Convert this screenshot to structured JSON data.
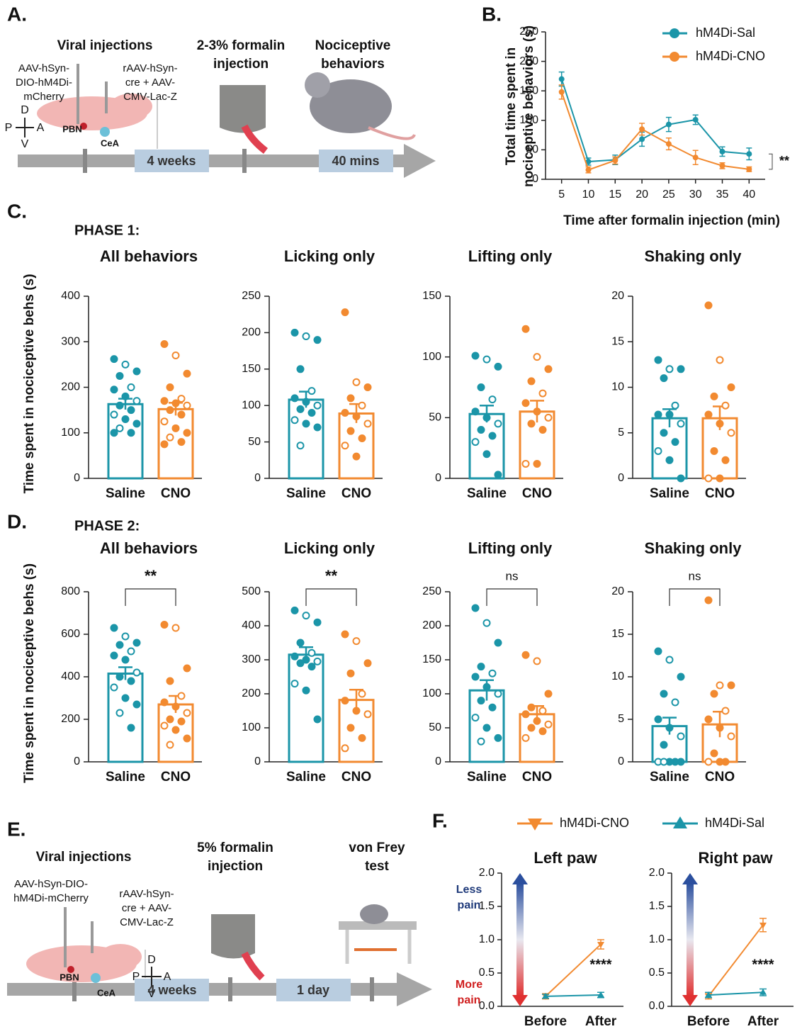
{
  "panel_labels": [
    "A.",
    "B.",
    "C.",
    "D.",
    "E.",
    "F."
  ],
  "phase_labels": [
    "PHASE 1:",
    "PHASE 2:"
  ],
  "schematic_a": {
    "steps": [
      [
        "Viral injections"
      ],
      [
        "2-3% formalin",
        "injection"
      ],
      [
        "Nociceptive",
        "behaviors"
      ]
    ],
    "injections": [
      [
        "AAV-hSyn-",
        "DIO-hM4Di-",
        "mCherry"
      ],
      [
        "rAAV-hSyn-",
        "cre + AAV-",
        "CMV-Lac-Z"
      ]
    ],
    "regions": [
      "PBN",
      "CeA"
    ],
    "compass": [
      "D",
      "P",
      "A",
      "V"
    ],
    "durations": [
      "4 weeks",
      "40 mins"
    ]
  },
  "schematic_e": {
    "steps": [
      [
        "Viral injections"
      ],
      [
        "5% formalin",
        "injection"
      ],
      [
        "von Frey",
        "test"
      ]
    ],
    "injections": [
      [
        "AAV-hSyn-DIO-",
        "hM4Di-mCherry"
      ],
      [
        "rAAV-hSyn-",
        "cre + AAV-",
        "CMV-Lac-Z"
      ]
    ],
    "regions": [
      "PBN",
      "CeA"
    ],
    "compass": [
      "D",
      "P",
      "A",
      "V"
    ],
    "durations": [
      "4 weeks",
      "1 day"
    ]
  },
  "chart_data": [
    {
      "type": "line",
      "ylabel": [
        "Total time spent in",
        "nociceptive behaviors (s)"
      ],
      "xlabel": "Time after formalin injection (min)",
      "x": [
        5,
        10,
        15,
        20,
        25,
        30,
        35,
        40
      ],
      "xlim": [
        2,
        43
      ],
      "xticks": [
        5,
        10,
        15,
        20,
        25,
        30,
        35,
        40
      ],
      "ylim": [
        0,
        250
      ],
      "yticks": [
        0,
        50,
        100,
        150,
        200,
        250
      ],
      "series": [
        {
          "name": "hM4Di-Sal",
          "color": "#1b95a8",
          "values": [
            170,
            30,
            33,
            68,
            93,
            101,
            47,
            43
          ],
          "errors": [
            12,
            6,
            8,
            12,
            12,
            8,
            8,
            10
          ]
        },
        {
          "name": "hM4Di-CNO",
          "color": "#f28a30",
          "values": [
            148,
            16,
            32,
            85,
            60,
            37,
            23,
            17
          ],
          "errors": [
            12,
            5,
            6,
            10,
            10,
            12,
            5,
            4
          ]
        }
      ],
      "annotation": "**"
    },
    {
      "type": "bar",
      "title": "All behaviors",
      "ylabel": "Time spent in nociceptive behs (s)",
      "categories": [
        "Saline",
        "CNO"
      ],
      "colors": [
        "#1b95a8",
        "#f28a30"
      ],
      "values": [
        163,
        152
      ],
      "errors": [
        12,
        14
      ],
      "ylim": [
        0,
        400
      ],
      "yticks": [
        0,
        100,
        200,
        300,
        400
      ],
      "points": [
        [
          262,
          250,
          235,
          225,
          200,
          195,
          180,
          170,
          160,
          150,
          140,
          130,
          120,
          110,
          100,
          100
        ],
        [
          295,
          270,
          230,
          200,
          175,
          170,
          165,
          160,
          150,
          140,
          125,
          110,
          100,
          90,
          80,
          75
        ]
      ]
    },
    {
      "type": "bar",
      "title": "Licking only",
      "categories": [
        "Saline",
        "CNO"
      ],
      "colors": [
        "#1b95a8",
        "#f28a30"
      ],
      "values": [
        108,
        89
      ],
      "errors": [
        11,
        13
      ],
      "ylim": [
        0,
        250
      ],
      "yticks": [
        0,
        50,
        100,
        150,
        200,
        250
      ],
      "points": [
        [
          200,
          195,
          190,
          150,
          120,
          110,
          105,
          100,
          95,
          90,
          80,
          75,
          70,
          45
        ],
        [
          228,
          132,
          125,
          110,
          100,
          90,
          85,
          75,
          65,
          55,
          45,
          30
        ]
      ]
    },
    {
      "type": "bar",
      "title": "Lifting only",
      "categories": [
        "Saline",
        "CNO"
      ],
      "colors": [
        "#1b95a8",
        "#f28a30"
      ],
      "values": [
        53,
        55
      ],
      "errors": [
        7,
        9
      ],
      "ylim": [
        0,
        150
      ],
      "yticks": [
        0,
        50,
        100,
        150
      ],
      "points": [
        [
          101,
          98,
          92,
          75,
          65,
          55,
          50,
          45,
          40,
          35,
          30,
          20,
          3
        ],
        [
          123,
          100,
          90,
          80,
          70,
          62,
          55,
          50,
          45,
          40,
          12,
          12
        ]
      ]
    },
    {
      "type": "bar",
      "title": "Shaking only",
      "categories": [
        "Saline",
        "CNO"
      ],
      "colors": [
        "#1b95a8",
        "#f28a30"
      ],
      "values": [
        6.6,
        6.6
      ],
      "errors": [
        1,
        1.3
      ],
      "ylim": [
        0,
        20
      ],
      "yticks": [
        0,
        5,
        10,
        15,
        20
      ],
      "points": [
        [
          13,
          12,
          12,
          11,
          8,
          7,
          7,
          6,
          5,
          4,
          3,
          2,
          0
        ],
        [
          19,
          13,
          10,
          9,
          8,
          7,
          6,
          5,
          3,
          2,
          0,
          0
        ]
      ]
    },
    {
      "type": "bar",
      "title": "All behaviors",
      "ylabel": "Time spent in nociceptive behs (s)",
      "categories": [
        "Saline",
        "CNO"
      ],
      "colors": [
        "#1b95a8",
        "#f28a30"
      ],
      "values": [
        415,
        270
      ],
      "errors": [
        30,
        40
      ],
      "ylim": [
        0,
        800
      ],
      "yticks": [
        0,
        200,
        400,
        600,
        800
      ],
      "points": [
        [
          630,
          590,
          560,
          550,
          520,
          500,
          480,
          420,
          400,
          380,
          350,
          300,
          270,
          230,
          160
        ],
        [
          645,
          630,
          440,
          380,
          310,
          280,
          260,
          230,
          200,
          190,
          170,
          150,
          110,
          80
        ]
      ],
      "annotation": "**"
    },
    {
      "type": "bar",
      "title": "Licking only",
      "categories": [
        "Saline",
        "CNO"
      ],
      "colors": [
        "#1b95a8",
        "#f28a30"
      ],
      "values": [
        315,
        182
      ],
      "errors": [
        22,
        30
      ],
      "ylim": [
        0,
        500
      ],
      "yticks": [
        0,
        100,
        200,
        300,
        400,
        500
      ],
      "points": [
        [
          445,
          430,
          410,
          350,
          320,
          310,
          300,
          295,
          290,
          280,
          230,
          210,
          125
        ],
        [
          375,
          355,
          290,
          260,
          200,
          180,
          150,
          140,
          100,
          70,
          40
        ]
      ],
      "annotation": "**"
    },
    {
      "type": "bar",
      "title": "Lifting only",
      "categories": [
        "Saline",
        "CNO"
      ],
      "colors": [
        "#1b95a8",
        "#f28a30"
      ],
      "values": [
        105,
        70
      ],
      "errors": [
        15,
        12
      ],
      "ylim": [
        0,
        250
      ],
      "yticks": [
        0,
        50,
        100,
        150,
        200,
        250
      ],
      "points": [
        [
          226,
          204,
          175,
          140,
          130,
          125,
          110,
          100,
          90,
          80,
          65,
          50,
          35,
          30
        ],
        [
          157,
          148,
          100,
          80,
          75,
          70,
          60,
          55,
          50,
          45,
          35
        ]
      ],
      "annotation": "ns"
    },
    {
      "type": "bar",
      "title": "Shaking only",
      "categories": [
        "Saline",
        "CNO"
      ],
      "colors": [
        "#1b95a8",
        "#f28a30"
      ],
      "values": [
        4.2,
        4.4
      ],
      "errors": [
        1,
        1.5
      ],
      "ylim": [
        0,
        20
      ],
      "yticks": [
        0,
        5,
        10,
        15,
        20
      ],
      "points": [
        [
          13,
          12,
          10,
          8,
          7,
          5,
          4,
          3,
          2,
          0,
          0,
          0,
          0,
          0
        ],
        [
          19,
          9,
          9,
          8,
          6,
          5,
          4,
          3,
          1,
          0,
          0,
          0
        ]
      ],
      "annotation": "ns"
    },
    {
      "type": "category-line",
      "title": "Left paw",
      "categories": [
        "Before",
        "After"
      ],
      "ylim": [
        0,
        2
      ],
      "yticks": [
        {
          "value": 0,
          "label": "0.0"
        },
        {
          "value": 0.5,
          "label": "0.5"
        },
        {
          "value": 1,
          "label": "1.0"
        },
        {
          "value": 1.5,
          "label": "1.5"
        },
        {
          "value": 2,
          "label": "2.0"
        }
      ],
      "series": [
        {
          "name": "hM4Di-CNO",
          "color": "#f28a30",
          "marker": "triangle-down",
          "values": [
            0.15,
            0.93
          ],
          "errors": [
            0.04,
            0.07
          ]
        },
        {
          "name": "hM4Di-Sal",
          "color": "#1b95a8",
          "marker": "triangle-up",
          "values": [
            0.15,
            0.17
          ],
          "errors": [
            0.03,
            0.04
          ]
        }
      ],
      "scale_labels": {
        "top": [
          "Less",
          "pain"
        ],
        "bottom": [
          "More",
          "pain"
        ]
      },
      "annotation": "****"
    },
    {
      "type": "category-line",
      "title": "Right paw",
      "categories": [
        "Before",
        "After"
      ],
      "ylim": [
        0,
        2
      ],
      "yticks": [
        {
          "value": 0,
          "label": "0.0"
        },
        {
          "value": 0.5,
          "label": "0.5"
        },
        {
          "value": 1,
          "label": "1.0"
        },
        {
          "value": 1.5,
          "label": "1.5"
        },
        {
          "value": 2,
          "label": "2.0"
        }
      ],
      "series": [
        {
          "color": "#f28a30",
          "marker": "triangle-down",
          "values": [
            0.15,
            1.22
          ],
          "errors": [
            0.04,
            0.1
          ]
        },
        {
          "color": "#1b95a8",
          "marker": "triangle-up",
          "values": [
            0.17,
            0.21
          ],
          "errors": [
            0.04,
            0.05
          ]
        }
      ],
      "annotation": "****"
    }
  ]
}
